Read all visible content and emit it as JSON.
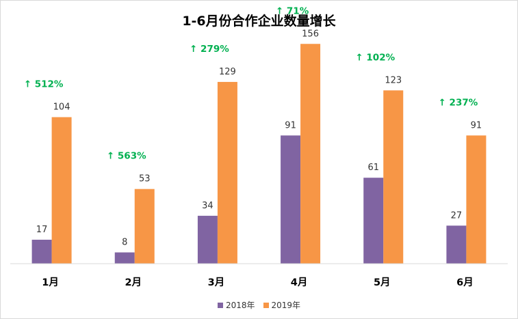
{
  "chart_data": {
    "type": "bar",
    "title": "1-6月份合作企业数量增长",
    "categories": [
      "1月",
      "2月",
      "3月",
      "4月",
      "5月",
      "6月"
    ],
    "series": [
      {
        "name": "2018年",
        "color": "#8064a2",
        "values": [
          17,
          8,
          34,
          91,
          61,
          27
        ]
      },
      {
        "name": "2019年",
        "color": "#f79646",
        "values": [
          104,
          53,
          129,
          156,
          123,
          91
        ]
      }
    ],
    "growth_labels": [
      "↑ 512%",
      "↑ 563%",
      "↑ 279%",
      "↑ 71%",
      "↑ 102%",
      "↑ 237%"
    ],
    "growth_color": "#00b050",
    "ylim": [
      0,
      160
    ],
    "grid": false,
    "legend_position": "bottom"
  }
}
